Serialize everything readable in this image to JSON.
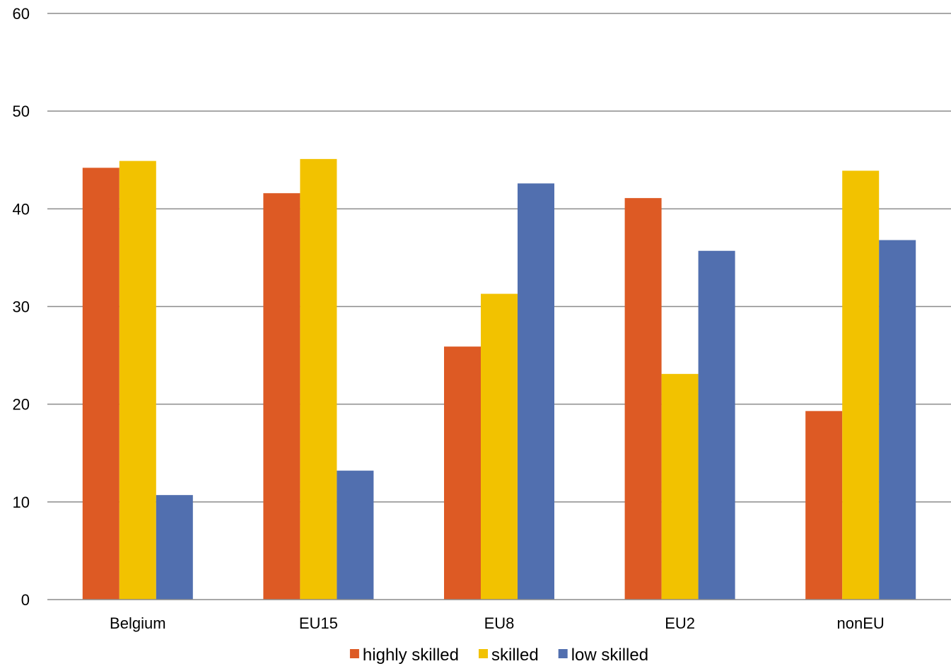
{
  "chart_data": {
    "type": "bar",
    "categories": [
      "Belgium",
      "EU15",
      "EU8",
      "EU2",
      "nonEU"
    ],
    "series": [
      {
        "name": "highly skilled",
        "color": "#DD5A24",
        "values": [
          44.2,
          41.6,
          25.9,
          41.1,
          19.3
        ]
      },
      {
        "name": "skilled",
        "color": "#F2C200",
        "values": [
          44.9,
          45.1,
          31.3,
          23.1,
          43.9
        ]
      },
      {
        "name": "low skilled",
        "color": "#516FAF",
        "values": [
          10.7,
          13.2,
          42.6,
          35.7,
          36.8
        ]
      }
    ],
    "ylim": [
      0,
      60
    ],
    "yticks": [
      0,
      10,
      20,
      30,
      40,
      50,
      60
    ],
    "grid": true,
    "legend_position": "bottom"
  }
}
